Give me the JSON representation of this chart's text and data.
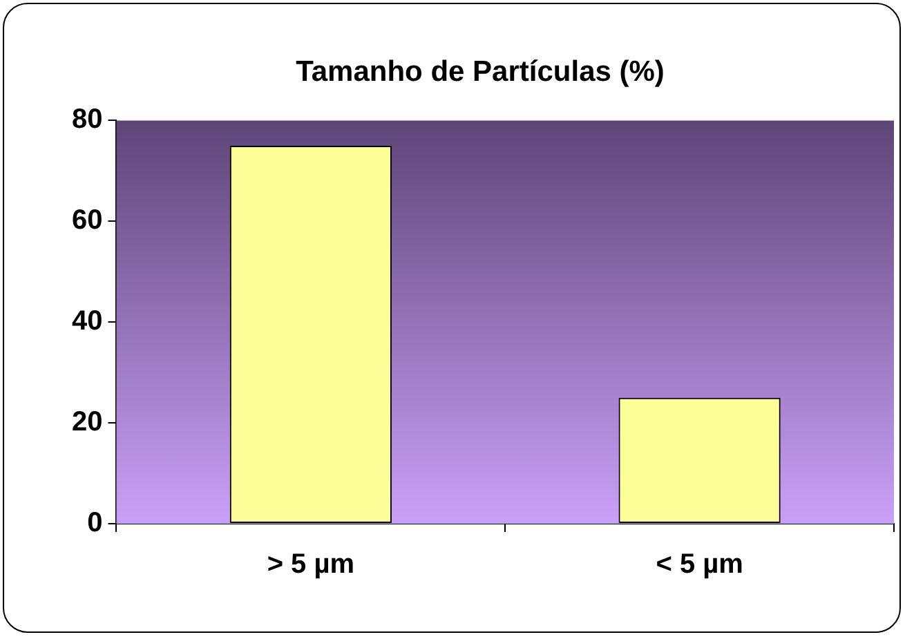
{
  "chart_data": {
    "type": "bar",
    "title": "Tamanho de Partículas (%)",
    "categories": [
      "> 5 µm",
      "< 5 µm"
    ],
    "values": [
      75,
      25
    ],
    "color": "#ffff99",
    "ylim": [
      0,
      80
    ],
    "yticks": [
      0,
      20,
      40,
      60,
      80
    ],
    "grid": false,
    "legend": false
  }
}
